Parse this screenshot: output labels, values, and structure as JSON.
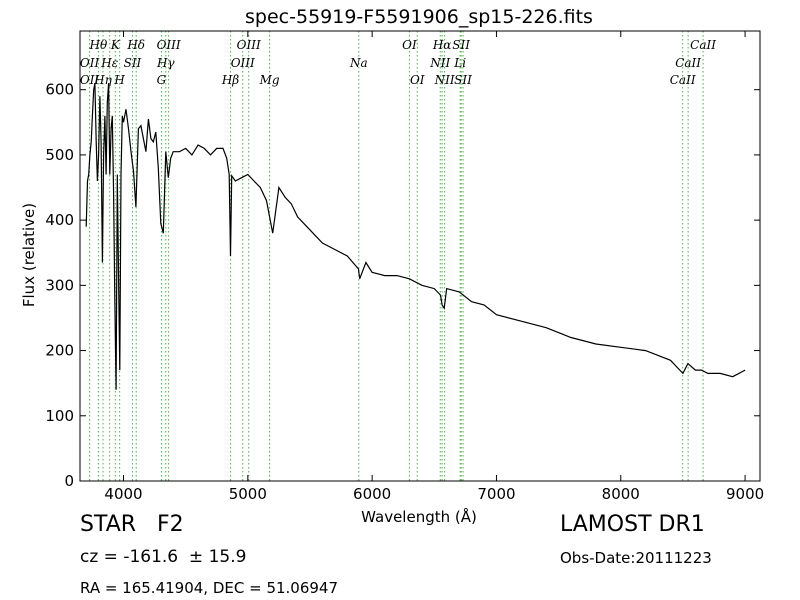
{
  "chart_data": {
    "type": "line",
    "title": "spec-55919-F5591906_sp15-226.fits",
    "xlabel": "Wavelength (Å)",
    "ylabel": "Flux (relative)",
    "xlim": [
      3650,
      9120
    ],
    "ylim": [
      0,
      690
    ],
    "xticks": [
      4000,
      5000,
      6000,
      7000,
      8000,
      9000
    ],
    "yticks": [
      0,
      100,
      200,
      300,
      400,
      500,
      600
    ],
    "grid": false,
    "line_color": "#000000",
    "marker_color": "#4caf50",
    "series": [
      {
        "x": [
          3700,
          3710,
          3720,
          3730,
          3740,
          3750,
          3760,
          3770,
          3780,
          3790,
          3800,
          3810,
          3820,
          3830,
          3840,
          3850,
          3860,
          3870,
          3880,
          3890,
          3900,
          3910,
          3920,
          3930,
          3940,
          3950,
          3960,
          3970,
          3980,
          3990,
          4000,
          4020,
          4040,
          4060,
          4080,
          4100,
          4120,
          4140,
          4160,
          4180,
          4200,
          4220,
          4240,
          4260,
          4280,
          4300,
          4320,
          4340,
          4360,
          4380,
          4400,
          4450,
          4500,
          4550,
          4600,
          4650,
          4700,
          4750,
          4800,
          4830,
          4850,
          4861,
          4870,
          4900,
          4950,
          5000,
          5050,
          5100,
          5150,
          5175,
          5200,
          5250,
          5300,
          5350,
          5400,
          5450,
          5500,
          5600,
          5700,
          5800,
          5890,
          5900,
          5950,
          6000,
          6100,
          6200,
          6300,
          6400,
          6500,
          6550,
          6563,
          6580,
          6600,
          6700,
          6800,
          6900,
          7000,
          7200,
          7400,
          7600,
          7800,
          8000,
          8200,
          8400,
          8450,
          8500,
          8540,
          8600,
          8650,
          8700,
          8800,
          8900,
          9000
        ],
        "y": [
          390,
          460,
          470,
          500,
          520,
          560,
          600,
          610,
          520,
          460,
          500,
          590,
          520,
          335,
          500,
          560,
          470,
          580,
          610,
          470,
          540,
          560,
          440,
          280,
          140,
          470,
          320,
          170,
          470,
          560,
          550,
          570,
          540,
          505,
          475,
          420,
          540,
          545,
          525,
          505,
          555,
          525,
          520,
          535,
          480,
          395,
          380,
          505,
          465,
          495,
          505,
          505,
          510,
          500,
          515,
          510,
          500,
          510,
          510,
          495,
          470,
          345,
          468,
          460,
          465,
          470,
          460,
          450,
          430,
          405,
          380,
          450,
          435,
          425,
          405,
          395,
          385,
          365,
          355,
          345,
          325,
          310,
          335,
          320,
          315,
          315,
          310,
          300,
          295,
          285,
          270,
          265,
          295,
          290,
          275,
          270,
          255,
          245,
          235,
          220,
          210,
          205,
          200,
          185,
          175,
          165,
          180,
          170,
          170,
          165,
          165,
          160,
          170
        ]
      }
    ],
    "spectral_lines": [
      {
        "label": "Hθ",
        "wave": 3798,
        "row": 1
      },
      {
        "label": "K",
        "wave": 3934,
        "row": 1
      },
      {
        "label": "Hδ",
        "wave": 4102,
        "row": 1
      },
      {
        "label": "OIII",
        "wave": 4363,
        "row": 1
      },
      {
        "label": "OIII",
        "wave": 5007,
        "row": 1
      },
      {
        "label": "OI",
        "wave": 6300,
        "row": 1
      },
      {
        "label": "Hα",
        "wave": 6563,
        "row": 1
      },
      {
        "label": "SII",
        "wave": 6716,
        "row": 1
      },
      {
        "label": "CaII",
        "wave": 8662,
        "row": 1
      },
      {
        "label": "OII",
        "wave": 3727,
        "row": 2
      },
      {
        "label": "Hε",
        "wave": 3889,
        "row": 2
      },
      {
        "label": "SII",
        "wave": 4072,
        "row": 2
      },
      {
        "label": "Hγ",
        "wave": 4340,
        "row": 2
      },
      {
        "label": "OIII",
        "wave": 4959,
        "row": 2
      },
      {
        "label": "Na",
        "wave": 5893,
        "row": 2
      },
      {
        "label": "NII",
        "wave": 6548,
        "row": 2
      },
      {
        "label": "Li",
        "wave": 6708,
        "row": 2
      },
      {
        "label": "CaII",
        "wave": 8542,
        "row": 2
      },
      {
        "label": "OII",
        "wave": 3727,
        "row": 3
      },
      {
        "label": "Hη",
        "wave": 3835,
        "row": 3
      },
      {
        "label": "H",
        "wave": 3969,
        "row": 3
      },
      {
        "label": "G",
        "wave": 4305,
        "row": 3
      },
      {
        "label": "Hβ",
        "wave": 4861,
        "row": 3
      },
      {
        "label": "Mg",
        "wave": 5175,
        "row": 3
      },
      {
        "label": "OI",
        "wave": 6363,
        "row": 3
      },
      {
        "label": "NII",
        "wave": 6583,
        "row": 3
      },
      {
        "label": "SII",
        "wave": 6731,
        "row": 3
      },
      {
        "label": "CaII",
        "wave": 8498,
        "row": 3
      }
    ]
  },
  "footer": {
    "object_class": "STAR   F2",
    "survey": "LAMOST DR1",
    "redshift": "cz = -161.6  ± 15.9",
    "obs_date": "Obs-Date:20111223",
    "coords": "RA = 165.41904, DEC = 51.06947"
  }
}
